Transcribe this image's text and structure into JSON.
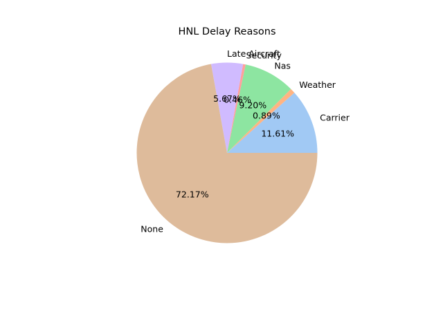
{
  "chart_data": {
    "type": "pie",
    "title": "HNL Delay Reasons",
    "slices": [
      {
        "label": "Carrier",
        "value": 11.61,
        "pct_text": "11.61%",
        "color": "#a1c9f4"
      },
      {
        "label": "Weather",
        "value": 0.89,
        "pct_text": "0.89%",
        "color": "#ffb482"
      },
      {
        "label": "Nas",
        "value": 9.2,
        "pct_text": "9.20%",
        "color": "#8de5a1"
      },
      {
        "label": "Security",
        "value": 0.46,
        "pct_text": "0.46%",
        "color": "#ff9f9b"
      },
      {
        "label": "Late Aircraft",
        "value": 5.67,
        "pct_text": "5.67%",
        "color": "#d0bbff"
      },
      {
        "label": "None",
        "value": 72.17,
        "pct_text": "72.17%",
        "color": "#debb9b"
      }
    ],
    "start_angle_deg": 0,
    "direction": "counterclockwise",
    "legend": "none"
  }
}
